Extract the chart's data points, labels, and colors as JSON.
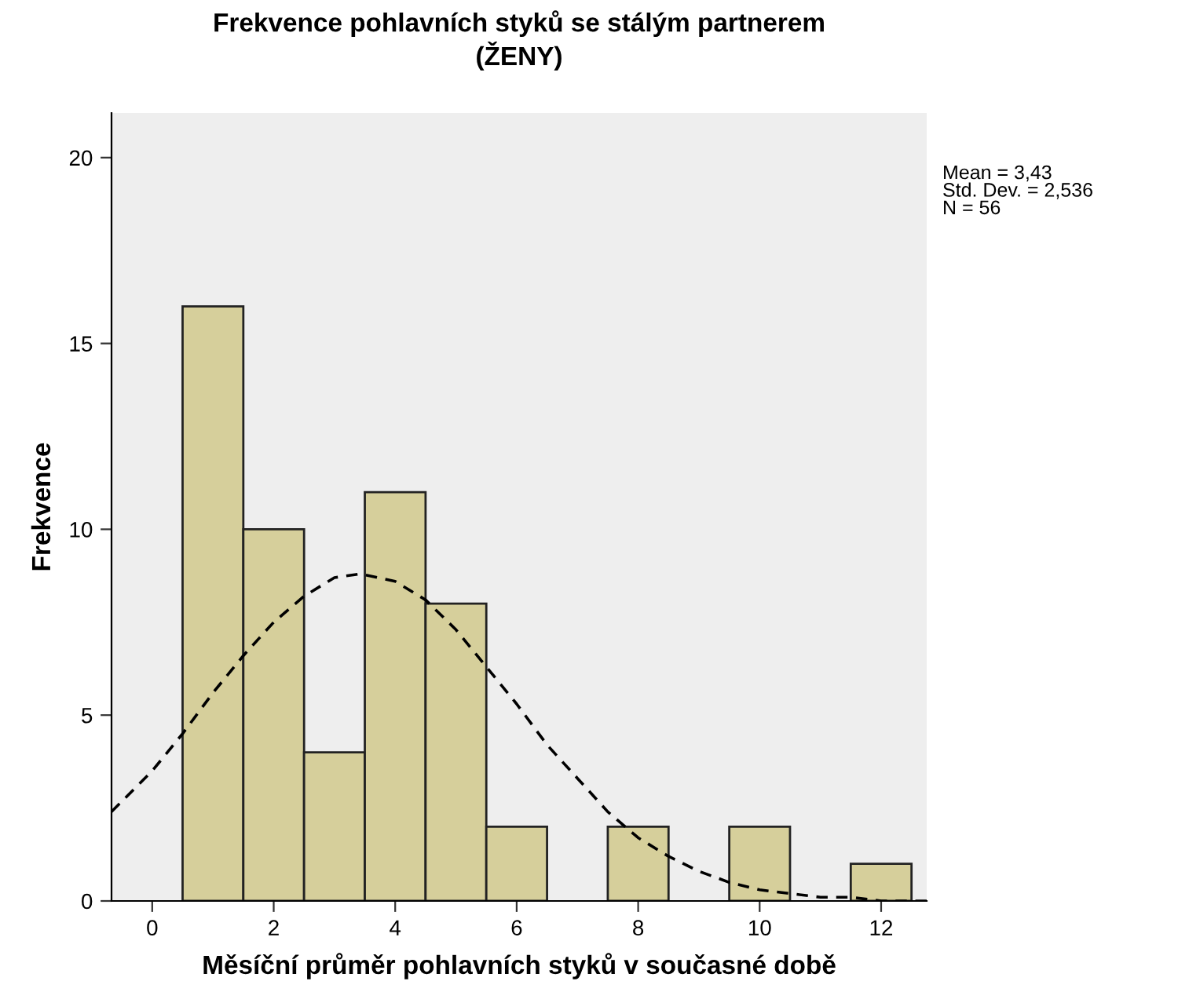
{
  "chart_data": {
    "type": "histogram",
    "title": "Frekvence pohlavních styků se stálým partnerem\n(ŽENY)",
    "xlabel": "Měsíční průměr pohlavních styků v současné době",
    "ylabel": "Frekvence",
    "bins": [
      0.5,
      1.5,
      2.5,
      3.5,
      4.5,
      5.5,
      6.5,
      7.5,
      8.5,
      9.5,
      10.5,
      11.5,
      12.5
    ],
    "values": [
      16,
      10,
      4,
      11,
      8,
      2,
      0,
      2,
      0,
      2,
      0,
      1
    ],
    "color": "#d6cf9b",
    "series": [
      {
        "type": "line",
        "color": "#000000",
        "line_style": "dashed",
        "x": [
          -0.67,
          0,
          0.5,
          1,
          1.5,
          2,
          2.5,
          3,
          3.43,
          4,
          4.5,
          5,
          5.5,
          6,
          6.5,
          7,
          7.5,
          8,
          8.5,
          9,
          9.5,
          10,
          10.5,
          11,
          11.5,
          12,
          12.75
        ],
        "values": [
          2.4,
          3.5,
          4.5,
          5.6,
          6.6,
          7.5,
          8.2,
          8.7,
          8.8,
          8.6,
          8.1,
          7.3,
          6.3,
          5.3,
          4.2,
          3.3,
          2.4,
          1.7,
          1.2,
          0.8,
          0.5,
          0.3,
          0.2,
          0.1,
          0.1,
          0.0,
          0.0
        ]
      }
    ],
    "xlim": [
      -0.67,
      12.75
    ],
    "ylim": [
      0,
      21.2
    ],
    "xticks": [
      0,
      2,
      4,
      6,
      8,
      10,
      12
    ],
    "yticks": [
      0,
      5,
      10,
      15,
      20
    ],
    "grid": false,
    "legend": false,
    "annotations": [
      "Mean = 3,43\nStd. Dev. = 2,536\nN = 56"
    ]
  }
}
